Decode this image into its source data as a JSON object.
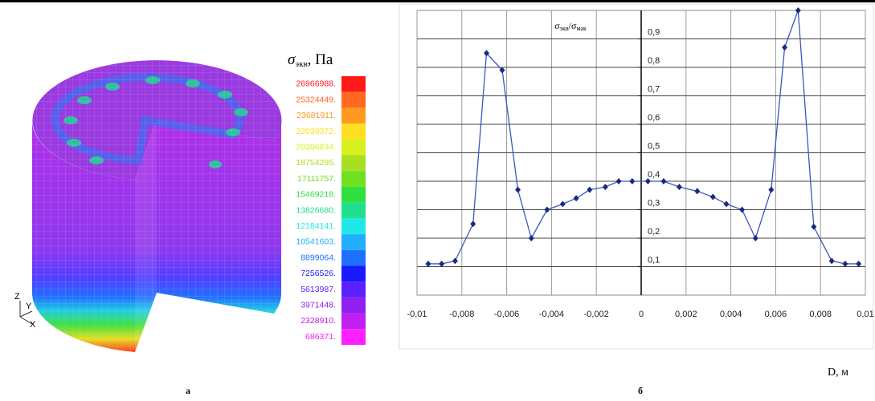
{
  "figure_a": {
    "panel_label": "а",
    "axes_triad": [
      "Z",
      "Y",
      "X"
    ],
    "colorbar": {
      "title_symbol": "σ",
      "title_subscript": "экв",
      "title_unit": ", Па",
      "levels": [
        {
          "value": 26966988,
          "label": "26966988."
        },
        {
          "value": 25324449,
          "label": "25324449."
        },
        {
          "value": 23681911,
          "label": "23681911."
        },
        {
          "value": 22039372,
          "label": "22039372."
        },
        {
          "value": 20396834,
          "label": "20396834."
        },
        {
          "value": 18754295,
          "label": "18754295."
        },
        {
          "value": 17111757,
          "label": "17111757."
        },
        {
          "value": 15469218,
          "label": "15469218."
        },
        {
          "value": 13826680,
          "label": "13826680."
        },
        {
          "value": 12184141,
          "label": "12184141."
        },
        {
          "value": 10541603,
          "label": "10541603."
        },
        {
          "value": 8899064,
          "label": "8899064."
        },
        {
          "value": 7256526,
          "label": "7256526."
        },
        {
          "value": 5613987,
          "label": "5613987."
        },
        {
          "value": 3971448,
          "label": "3971448."
        },
        {
          "value": 2328910,
          "label": "2328910."
        },
        {
          "value": 686371,
          "label": "686371."
        }
      ],
      "colors": [
        "#ff1a1a",
        "#ff6a20",
        "#ff9a20",
        "#ffe020",
        "#d8f020",
        "#a8e020",
        "#70e020",
        "#30e040",
        "#20e090",
        "#20e8e8",
        "#20b0ff",
        "#2070ff",
        "#1a1aff",
        "#5a20ff",
        "#9020f0",
        "#c020f0",
        "#ff20ff"
      ]
    }
  },
  "chart_data": {
    "type": "line",
    "panel_label": "б",
    "ylabel": [
      "σ",
      "экв",
      "/σ",
      "мак"
    ],
    "xlabel": "D, м",
    "xlim": [
      -0.01,
      0.01
    ],
    "ylim": [
      0,
      1
    ],
    "xticks": [
      {
        "value": -0.01,
        "label": "-0,01"
      },
      {
        "value": -0.008,
        "label": "-0,008"
      },
      {
        "value": -0.006,
        "label": "-0,006"
      },
      {
        "value": -0.004,
        "label": "-0,004"
      },
      {
        "value": -0.002,
        "label": "-0,002"
      },
      0,
      {
        "value": 0.002,
        "label": "0,002"
      },
      {
        "value": 0.004,
        "label": "0,004"
      },
      {
        "value": 0.006,
        "label": "0,006"
      },
      {
        "value": 0.008,
        "label": "0,008"
      },
      {
        "value": 0.01,
        "label": "0,01"
      }
    ],
    "yticks": [
      {
        "value": 0.1,
        "label": "0,1"
      },
      {
        "value": 0.2,
        "label": "0,2"
      },
      {
        "value": 0.3,
        "label": "0,3"
      },
      {
        "value": 0.4,
        "label": "0,4"
      },
      {
        "value": 0.5,
        "label": "0,5"
      },
      {
        "value": 0.6,
        "label": "0,6"
      },
      {
        "value": 0.7,
        "label": "0,7"
      },
      {
        "value": 0.8,
        "label": "0,8"
      },
      {
        "value": 0.9,
        "label": "0,9"
      }
    ],
    "grid": true,
    "line_color": "#3a58b8",
    "marker_color": "#1a2a80",
    "x": [
      -0.0095,
      -0.0089,
      -0.0083,
      -0.0075,
      -0.0069,
      -0.0062,
      -0.0055,
      -0.0049,
      -0.0042,
      -0.0035,
      -0.0029,
      -0.0023,
      -0.0016,
      -0.001,
      -0.0004,
      0.0003,
      0.001,
      0.0017,
      0.0025,
      0.0032,
      0.0038,
      0.0045,
      0.0051,
      0.0058,
      0.0064,
      0.007,
      0.0077,
      0.0085,
      0.0091,
      0.0097
    ],
    "values": [
      0.11,
      0.11,
      0.12,
      0.25,
      0.85,
      0.79,
      0.37,
      0.2,
      0.3,
      0.32,
      0.34,
      0.37,
      0.38,
      0.4,
      0.4,
      0.4,
      0.4,
      0.38,
      0.365,
      0.345,
      0.32,
      0.3,
      0.2,
      0.37,
      0.87,
      1.0,
      0.24,
      0.12,
      0.11,
      0.11
    ]
  }
}
